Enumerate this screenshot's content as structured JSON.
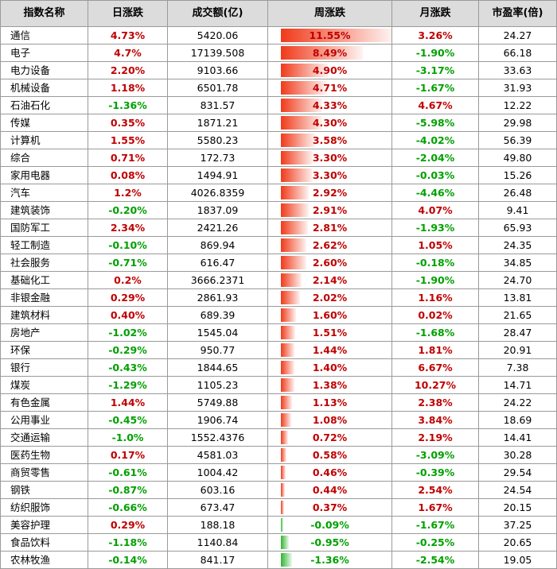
{
  "headers": [
    "指数名称",
    "日涨跌",
    "成交额(亿)",
    "周涨跌",
    "月涨跌",
    "市盈率(倍)"
  ],
  "colors": {
    "up": "#c00000",
    "down": "#00a000",
    "bar_up": "#f03a1a",
    "bar_down": "#2fb52f",
    "header_bg": "#dcdcdc"
  },
  "rows": [
    {
      "name": "通信",
      "day": "4.73%",
      "turnover": "5420.06",
      "week": "11.55%",
      "month": "3.26%",
      "pe": "24.27"
    },
    {
      "name": "电子",
      "day": "4.7%",
      "turnover": "17139.508",
      "week": "8.49%",
      "month": "-1.90%",
      "pe": "66.18"
    },
    {
      "name": "电力设备",
      "day": "2.20%",
      "turnover": "9103.66",
      "week": "4.90%",
      "month": "-3.17%",
      "pe": "33.63"
    },
    {
      "name": "机械设备",
      "day": "1.18%",
      "turnover": "6501.78",
      "week": "4.71%",
      "month": "-1.67%",
      "pe": "31.93"
    },
    {
      "name": "石油石化",
      "day": "-1.36%",
      "turnover": "831.57",
      "week": "4.33%",
      "month": "4.67%",
      "pe": "12.22"
    },
    {
      "name": "传媒",
      "day": "0.35%",
      "turnover": "1871.21",
      "week": "4.30%",
      "month": "-5.98%",
      "pe": "29.98"
    },
    {
      "name": "计算机",
      "day": "1.55%",
      "turnover": "5580.23",
      "week": "3.58%",
      "month": "-4.02%",
      "pe": "56.39"
    },
    {
      "name": "综合",
      "day": "0.71%",
      "turnover": "172.73",
      "week": "3.30%",
      "month": "-2.04%",
      "pe": "49.80"
    },
    {
      "name": "家用电器",
      "day": "0.08%",
      "turnover": "1494.91",
      "week": "3.30%",
      "month": "-0.03%",
      "pe": "15.26"
    },
    {
      "name": "汽车",
      "day": "1.2%",
      "turnover": "4026.8359",
      "week": "2.92%",
      "month": "-4.46%",
      "pe": "26.48"
    },
    {
      "name": "建筑装饰",
      "day": "-0.20%",
      "turnover": "1837.09",
      "week": "2.91%",
      "month": "4.07%",
      "pe": "9.41"
    },
    {
      "name": "国防军工",
      "day": "2.34%",
      "turnover": "2421.26",
      "week": "2.81%",
      "month": "-1.93%",
      "pe": "65.93"
    },
    {
      "name": "轻工制造",
      "day": "-0.10%",
      "turnover": "869.94",
      "week": "2.62%",
      "month": "1.05%",
      "pe": "24.35"
    },
    {
      "name": "社会服务",
      "day": "-0.71%",
      "turnover": "616.47",
      "week": "2.60%",
      "month": "-0.18%",
      "pe": "34.85"
    },
    {
      "name": "基础化工",
      "day": "0.2%",
      "turnover": "3666.2371",
      "week": "2.14%",
      "month": "-1.90%",
      "pe": "24.70"
    },
    {
      "name": "非银金融",
      "day": "0.29%",
      "turnover": "2861.93",
      "week": "2.02%",
      "month": "1.16%",
      "pe": "13.81"
    },
    {
      "name": "建筑材料",
      "day": "0.40%",
      "turnover": "689.39",
      "week": "1.60%",
      "month": "0.02%",
      "pe": "21.65"
    },
    {
      "name": "房地产",
      "day": "-1.02%",
      "turnover": "1545.04",
      "week": "1.51%",
      "month": "-1.68%",
      "pe": "28.47"
    },
    {
      "name": "环保",
      "day": "-0.29%",
      "turnover": "950.77",
      "week": "1.44%",
      "month": "1.81%",
      "pe": "20.91"
    },
    {
      "name": "银行",
      "day": "-0.43%",
      "turnover": "1844.65",
      "week": "1.40%",
      "month": "6.67%",
      "pe": "7.38"
    },
    {
      "name": "煤炭",
      "day": "-1.29%",
      "turnover": "1105.23",
      "week": "1.38%",
      "month": "10.27%",
      "pe": "14.71"
    },
    {
      "name": "有色金属",
      "day": "1.44%",
      "turnover": "5749.88",
      "week": "1.13%",
      "month": "2.38%",
      "pe": "24.22"
    },
    {
      "name": "公用事业",
      "day": "-0.45%",
      "turnover": "1906.74",
      "week": "1.08%",
      "month": "3.84%",
      "pe": "18.69"
    },
    {
      "name": "交通运输",
      "day": "-1.0%",
      "turnover": "1552.4376",
      "week": "0.72%",
      "month": "2.19%",
      "pe": "14.41"
    },
    {
      "name": "医药生物",
      "day": "0.17%",
      "turnover": "4581.03",
      "week": "0.58%",
      "month": "-3.09%",
      "pe": "30.28"
    },
    {
      "name": "商贸零售",
      "day": "-0.61%",
      "turnover": "1004.42",
      "week": "0.46%",
      "month": "-0.39%",
      "pe": "29.54"
    },
    {
      "name": "钢铁",
      "day": "-0.87%",
      "turnover": "603.16",
      "week": "0.44%",
      "month": "2.54%",
      "pe": "24.54"
    },
    {
      "name": "纺织服饰",
      "day": "-0.66%",
      "turnover": "673.47",
      "week": "0.37%",
      "month": "1.67%",
      "pe": "20.15"
    },
    {
      "name": "美容护理",
      "day": "0.29%",
      "turnover": "188.18",
      "week": "-0.09%",
      "month": "-1.67%",
      "pe": "37.25"
    },
    {
      "name": "食品饮料",
      "day": "-1.18%",
      "turnover": "1140.84",
      "week": "-0.95%",
      "month": "-0.25%",
      "pe": "20.65"
    },
    {
      "name": "农林牧渔",
      "day": "-0.14%",
      "turnover": "841.17",
      "week": "-1.36%",
      "month": "-2.54%",
      "pe": "19.05"
    }
  ]
}
